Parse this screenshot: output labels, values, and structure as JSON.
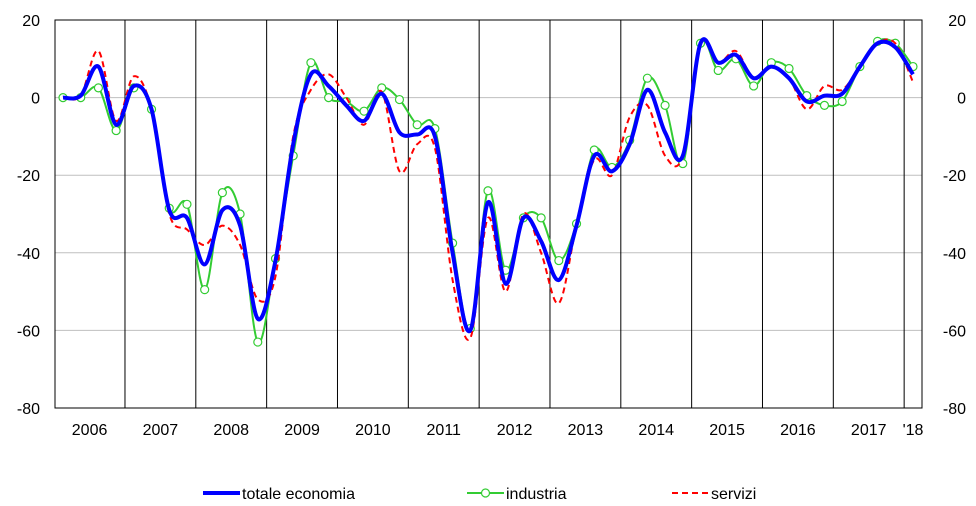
{
  "chart_data": {
    "type": "line",
    "title": "",
    "xlabel": "",
    "ylabel": "",
    "ylim": [
      -80,
      20
    ],
    "yticks": [
      20,
      0,
      -20,
      -40,
      -60,
      -80
    ],
    "ytick_labels": [
      "20",
      "0",
      "-20",
      "-40",
      "-60",
      "-80"
    ],
    "grid": "horizontal",
    "dual_y_axis": true,
    "legend_position": "bottom",
    "year_labels": [
      "2006",
      "2007",
      "2008",
      "2009",
      "2010",
      "2011",
      "2012",
      "2013",
      "2014",
      "2015",
      "2016",
      "2017",
      "'18"
    ],
    "x": [
      "2006-Q1",
      "2006-Q2",
      "2006-Q3",
      "2006-Q4",
      "2007-Q1",
      "2007-Q2",
      "2007-Q3",
      "2007-Q4",
      "2008-Q1",
      "2008-Q2",
      "2008-Q3",
      "2008-Q4",
      "2009-Q1",
      "2009-Q2",
      "2009-Q3",
      "2009-Q4",
      "2010-Q1",
      "2010-Q2",
      "2010-Q3",
      "2010-Q4",
      "2011-Q1",
      "2011-Q2",
      "2011-Q3",
      "2011-Q4",
      "2012-Q1",
      "2012-Q2",
      "2012-Q3",
      "2012-Q4",
      "2013-Q1",
      "2013-Q2",
      "2013-Q3",
      "2013-Q4",
      "2014-Q1",
      "2014-Q2",
      "2014-Q3",
      "2014-Q4",
      "2015-Q1",
      "2015-Q2",
      "2015-Q3",
      "2015-Q4",
      "2016-Q1",
      "2016-Q2",
      "2016-Q3",
      "2016-Q4",
      "2017-Q1",
      "2017-Q2",
      "2017-Q3",
      "2017-Q4",
      "2018-Q1"
    ],
    "series": [
      {
        "name": "totale economia",
        "color": "#0000ff",
        "style": "solid-thick",
        "values": [
          0,
          0.5,
          8,
          -7,
          3,
          -3,
          -29,
          -31,
          -43,
          -29,
          -33,
          -57,
          -42,
          -12,
          6,
          3,
          -2,
          -6,
          1,
          -9,
          -9.5,
          -10,
          -40,
          -60,
          -27,
          -48,
          -31,
          -37,
          -47,
          -33,
          -15,
          -19,
          -12,
          2,
          -9,
          -15,
          14,
          9,
          11,
          5,
          8,
          5,
          -1,
          0.5,
          1,
          8,
          14,
          13,
          6
        ]
      },
      {
        "name": "industria",
        "color": "#33cc33",
        "style": "solid-circle-markers",
        "values": [
          0,
          0,
          2.5,
          -8.5,
          2.5,
          -3,
          -28.5,
          -27.5,
          -49.5,
          -24.5,
          -30,
          -63,
          -41.5,
          -15,
          9,
          0,
          -1,
          -3.5,
          2.5,
          -0.5,
          -7,
          -8,
          -37.5,
          -59.5,
          -24,
          -44.5,
          -31,
          -31,
          -42,
          -32.5,
          -13.5,
          -18,
          -11,
          5,
          -2,
          -17,
          14,
          7,
          10,
          3,
          9,
          7.5,
          0.5,
          -2,
          -1,
          8,
          14.5,
          14,
          8
        ]
      },
      {
        "name": "servizi",
        "color": "#ff0000",
        "style": "dashed",
        "values": [
          0,
          0.5,
          12,
          -6,
          5.5,
          -3,
          -30,
          -34,
          -38,
          -33,
          -38,
          -52,
          -46,
          -10,
          2,
          6,
          0,
          -7,
          1.5,
          -19,
          -12,
          -13,
          -47,
          -62,
          -31,
          -50,
          -30,
          -40,
          -53,
          -33,
          -16,
          -20,
          -5,
          -2,
          -15,
          -15,
          14,
          9,
          12,
          5,
          8,
          5,
          -3,
          3,
          2,
          8,
          14,
          14,
          4
        ]
      }
    ]
  }
}
